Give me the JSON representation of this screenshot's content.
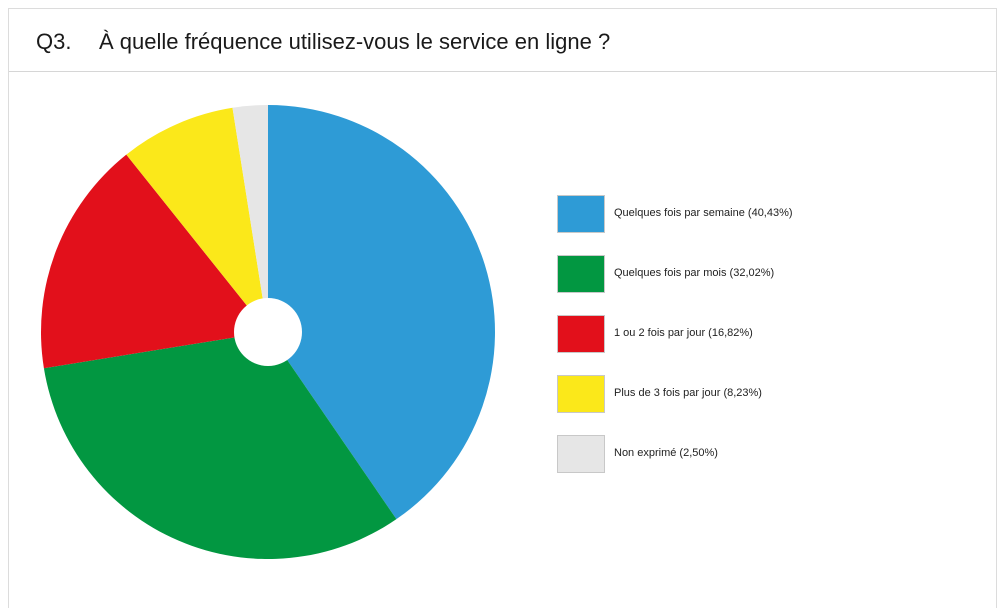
{
  "question": {
    "number": "Q3.",
    "text": "À quelle fréquence utilisez-vous le service en ligne ?"
  },
  "chart_data": {
    "type": "pie",
    "donut_hole": true,
    "start_angle": "12 o'clock",
    "direction": "clockwise",
    "legend_position": "right",
    "categories": [
      "Quelques fois par semaine",
      "Quelques fois par mois",
      "1 ou 2 fois par jour",
      "Plus de 3 fois par jour",
      "Non exprimé"
    ],
    "values": [
      40.43,
      32.02,
      16.82,
      8.23,
      2.5
    ],
    "colors": [
      "#2e9bd6",
      "#029741",
      "#e2101b",
      "#fbe81a",
      "#e6e6e6"
    ],
    "legend_labels": [
      "Quelques fois par semaine (40,43%)",
      "Quelques fois par mois (32,02%)",
      "1 ou 2 fois par jour (16,82%)",
      "Plus de 3 fois par jour (8,23%)",
      "Non exprimé (2,50%)"
    ]
  }
}
